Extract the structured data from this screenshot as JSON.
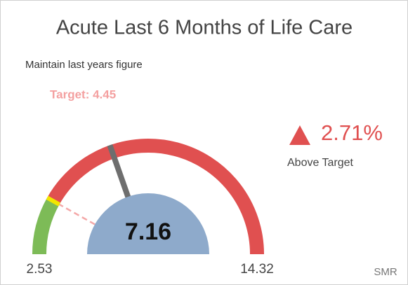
{
  "chart_data": {
    "type": "gauge",
    "title": "Acute Last 6 Months of Life Care",
    "subtitle": "Maintain last years figure",
    "min": 2.53,
    "max": 14.32,
    "value": 7.16,
    "target": 4.45,
    "target_label": "Target: 4.45",
    "change": 2.71,
    "change_label": "2.71%",
    "change_text": "Above Target",
    "unit": "SMR",
    "below_color": "#7dbb57",
    "above_color": "#e05050",
    "target_color": "#f2e600",
    "needle_color": "#6e6e6e",
    "value_fill": "#8eaacb"
  }
}
